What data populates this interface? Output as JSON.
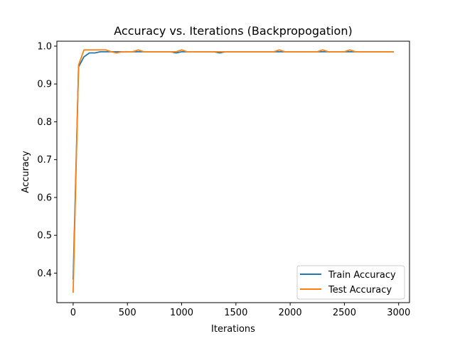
{
  "chart_data": {
    "type": "line",
    "title": "Accuracy vs. Iterations (Backpropogation)",
    "xlabel": "Iterations",
    "ylabel": "Accuracy",
    "xlim": [
      -150,
      3100
    ],
    "ylim": [
      0.322,
      1.013
    ],
    "xticks": [
      0,
      500,
      1000,
      1500,
      2000,
      2500,
      3000
    ],
    "xtick_labels": [
      "0",
      "500",
      "1000",
      "1500",
      "2000",
      "2500",
      "3000"
    ],
    "yticks": [
      0.4,
      0.5,
      0.6,
      0.7,
      0.8,
      0.9,
      1.0
    ],
    "ytick_labels": [
      "0.4",
      "0.5",
      "0.6",
      "0.7",
      "0.8",
      "0.9",
      "1.0"
    ],
    "grid": false,
    "legend_position": "lower-right",
    "x": [
      0,
      50,
      100,
      150,
      200,
      250,
      300,
      350,
      400,
      450,
      500,
      550,
      600,
      650,
      700,
      750,
      800,
      850,
      900,
      950,
      1000,
      1050,
      1100,
      1150,
      1200,
      1250,
      1300,
      1350,
      1400,
      1450,
      1500,
      1550,
      1600,
      1650,
      1700,
      1750,
      1800,
      1850,
      1900,
      1950,
      2000,
      2050,
      2100,
      2150,
      2200,
      2250,
      2300,
      2350,
      2400,
      2450,
      2500,
      2550,
      2600,
      2650,
      2700,
      2750,
      2800,
      2850,
      2900,
      2950
    ],
    "series": [
      {
        "name": "Train Accuracy",
        "color": "#1f77b4",
        "values": [
          0.385,
          0.945,
          0.972,
          0.982,
          0.982,
          0.985,
          0.985,
          0.985,
          0.985,
          0.985,
          0.985,
          0.985,
          0.985,
          0.985,
          0.985,
          0.985,
          0.985,
          0.985,
          0.985,
          0.982,
          0.985,
          0.985,
          0.985,
          0.985,
          0.985,
          0.985,
          0.985,
          0.982,
          0.985,
          0.985,
          0.985,
          0.985,
          0.985,
          0.985,
          0.985,
          0.985,
          0.985,
          0.985,
          0.985,
          0.985,
          0.985,
          0.985,
          0.985,
          0.985,
          0.985,
          0.985,
          0.985,
          0.985,
          0.985,
          0.985,
          0.985,
          0.985,
          0.985,
          0.985,
          0.985,
          0.985,
          0.985,
          0.985,
          0.985,
          0.985
        ]
      },
      {
        "name": "Test Accuracy",
        "color": "#ff7f0e",
        "values": [
          0.35,
          0.95,
          0.99,
          0.99,
          0.99,
          0.99,
          0.99,
          0.985,
          0.982,
          0.985,
          0.985,
          0.985,
          0.99,
          0.985,
          0.985,
          0.985,
          0.985,
          0.985,
          0.985,
          0.985,
          0.99,
          0.985,
          0.985,
          0.985,
          0.985,
          0.985,
          0.985,
          0.985,
          0.985,
          0.985,
          0.985,
          0.985,
          0.985,
          0.985,
          0.985,
          0.985,
          0.985,
          0.985,
          0.99,
          0.985,
          0.985,
          0.985,
          0.985,
          0.985,
          0.985,
          0.985,
          0.99,
          0.985,
          0.985,
          0.985,
          0.985,
          0.99,
          0.985,
          0.985,
          0.985,
          0.985,
          0.985,
          0.985,
          0.985,
          0.985
        ]
      }
    ]
  }
}
